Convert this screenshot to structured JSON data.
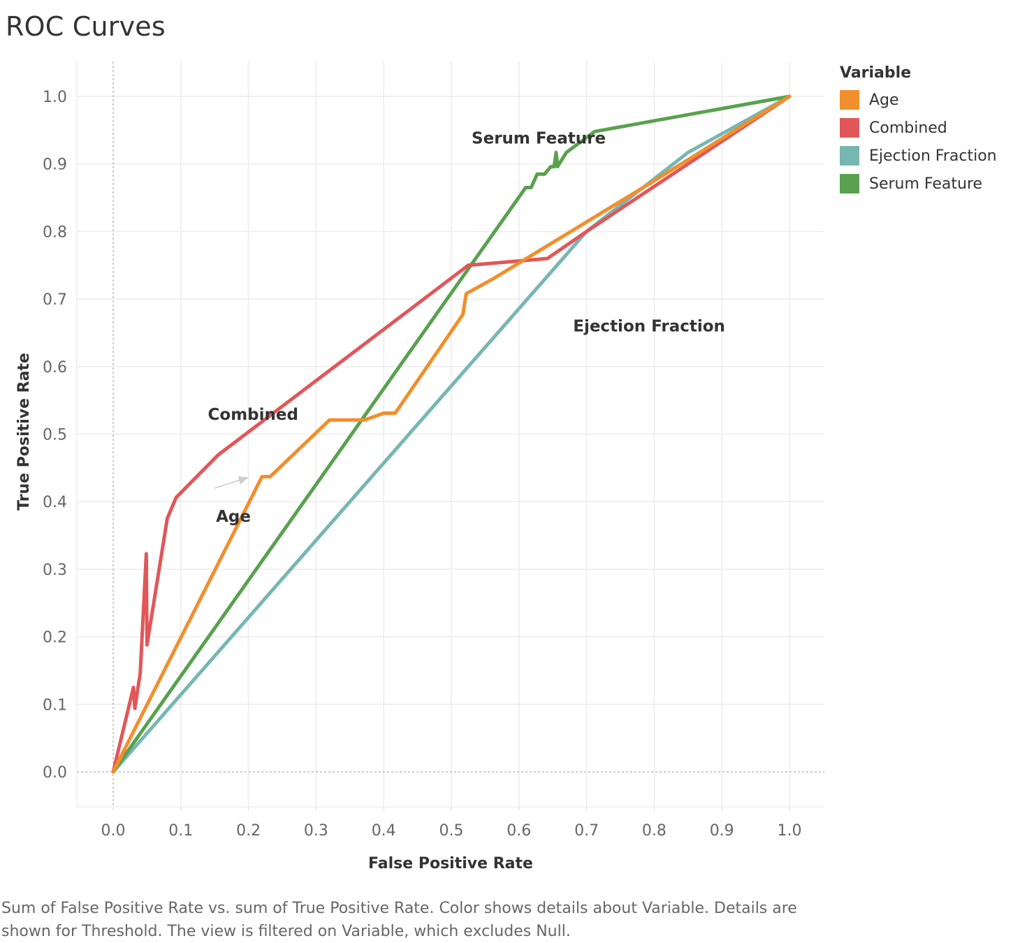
{
  "title": "ROC Curves",
  "caption": "Sum of False Positive Rate vs. sum of True Positive Rate.  Color shows details about Variable.  Details are shown for Threshold. The view is filtered on Variable, which excludes Null.",
  "chart_data": {
    "type": "line",
    "title": "ROC Curves",
    "xlabel": "False Positive Rate",
    "ylabel": "True Positive Rate",
    "xlim": [
      -0.05,
      1.05
    ],
    "ylim": [
      -0.05,
      1.07
    ],
    "xticks": [
      "0.0",
      "0.1",
      "0.2",
      "0.3",
      "0.4",
      "0.5",
      "0.6",
      "0.7",
      "0.8",
      "0.9",
      "1.0"
    ],
    "yticks": [
      "0.0",
      "0.1",
      "0.2",
      "0.3",
      "0.4",
      "0.5",
      "0.6",
      "0.7",
      "0.8",
      "0.9",
      "1.0"
    ],
    "grid": true,
    "legend": {
      "title": "Variable",
      "placement": "right"
    },
    "series": [
      {
        "name": "Age",
        "color": "#f28e2b",
        "points": [
          [
            0.0,
            0.0
          ],
          [
            0.22,
            0.437
          ],
          [
            0.232,
            0.437
          ],
          [
            0.32,
            0.521
          ],
          [
            0.372,
            0.521
          ],
          [
            0.4,
            0.531
          ],
          [
            0.417,
            0.531
          ],
          [
            0.517,
            0.677
          ],
          [
            0.522,
            0.708
          ],
          [
            0.56,
            0.729
          ],
          [
            0.8,
            0.875
          ],
          [
            1.0,
            1.0
          ]
        ]
      },
      {
        "name": "Combined",
        "color": "#e15759",
        "points": [
          [
            0.0,
            0.0
          ],
          [
            0.03,
            0.125
          ],
          [
            0.032,
            0.094
          ],
          [
            0.04,
            0.146
          ],
          [
            0.049,
            0.323
          ],
          [
            0.05,
            0.188
          ],
          [
            0.08,
            0.375
          ],
          [
            0.093,
            0.406
          ],
          [
            0.155,
            0.469
          ],
          [
            0.525,
            0.75
          ],
          [
            0.642,
            0.76
          ],
          [
            0.7,
            0.8
          ],
          [
            1.0,
            1.0
          ]
        ]
      },
      {
        "name": "Ejection Fraction",
        "color": "#76b7b2",
        "points": [
          [
            0.0,
            0.0
          ],
          [
            0.7,
            0.8
          ],
          [
            0.85,
            0.917
          ],
          [
            1.0,
            1.0
          ]
        ]
      },
      {
        "name": "Serum Feature",
        "color": "#59a14f",
        "points": [
          [
            0.0,
            0.0
          ],
          [
            0.61,
            0.865
          ],
          [
            0.618,
            0.865
          ],
          [
            0.627,
            0.885
          ],
          [
            0.638,
            0.885
          ],
          [
            0.647,
            0.896
          ],
          [
            0.652,
            0.896
          ],
          [
            0.655,
            0.917
          ],
          [
            0.657,
            0.896
          ],
          [
            0.67,
            0.917
          ],
          [
            0.712,
            0.948
          ],
          [
            1.0,
            1.0
          ]
        ]
      }
    ],
    "annotations": [
      {
        "text": "Serum Feature",
        "x": 0.53,
        "y": 0.93
      },
      {
        "text": "Ejection Fraction",
        "x": 0.68,
        "y": 0.652
      },
      {
        "text": "Combined",
        "x": 0.14,
        "y": 0.521
      },
      {
        "text": "Age",
        "x": 0.152,
        "y": 0.37
      }
    ],
    "arrow": {
      "from": [
        0.15,
        0.42
      ],
      "to": [
        0.2,
        0.436
      ]
    }
  }
}
